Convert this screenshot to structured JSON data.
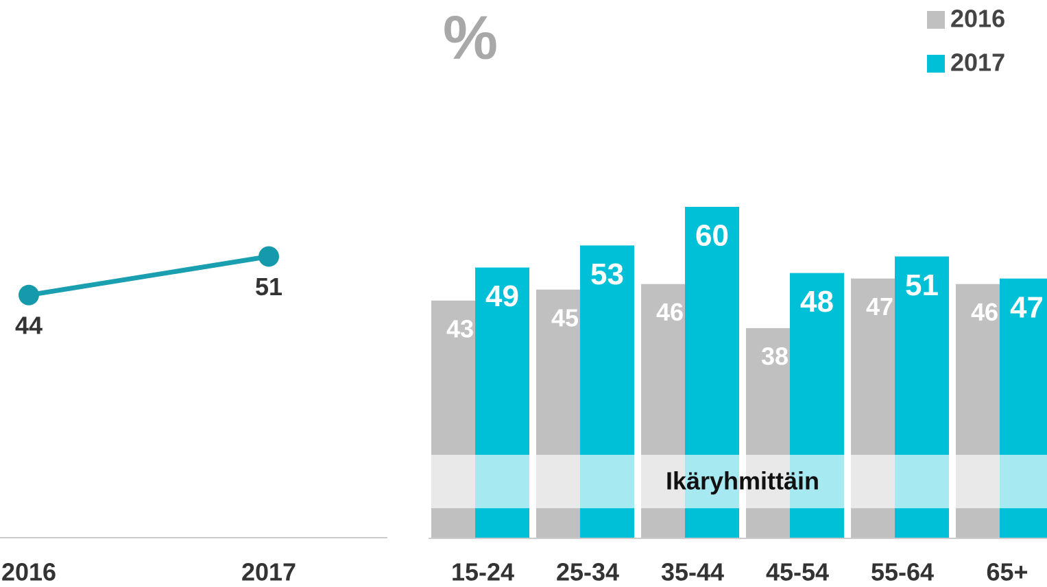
{
  "chart_data": [
    {
      "type": "line",
      "categories": [
        "2016",
        "2017"
      ],
      "values": [
        44,
        51
      ],
      "color": "#1a9fb0",
      "ylim": [
        0,
        90
      ]
    },
    {
      "type": "bar",
      "unit": "%",
      "annotation": "Ikäryhmittäin",
      "categories": [
        "15-24",
        "25-34",
        "35-44",
        "45-54",
        "55-64",
        "65+"
      ],
      "series": [
        {
          "name": "2016",
          "color": "#c0c0c0",
          "values": [
            43,
            45,
            46,
            38,
            47,
            46
          ]
        },
        {
          "name": "2017",
          "color": "#00c0d8",
          "values": [
            49,
            53,
            60,
            48,
            51,
            47
          ]
        }
      ],
      "ylim": [
        0,
        90
      ],
      "legend": "top-right"
    }
  ]
}
